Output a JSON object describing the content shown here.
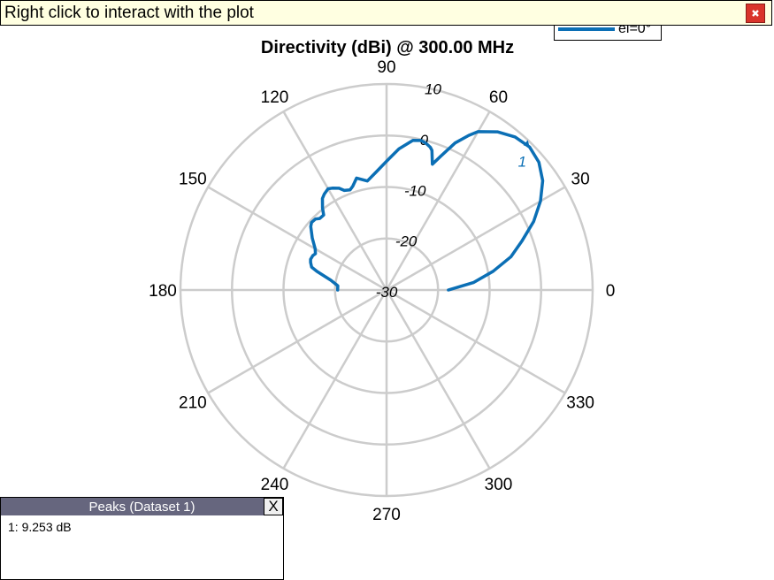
{
  "banner": {
    "text": "Right click to interact with the plot",
    "close_icon": "close-icon",
    "close_color": "#d9342b"
  },
  "legend": {
    "entries": [
      {
        "label": "el=0°",
        "color": "#0b6fb5"
      }
    ]
  },
  "peaks_panel": {
    "title": "Peaks (Dataset 1)",
    "close_label": "X",
    "items": [
      "1: 9.253 dB"
    ]
  },
  "chart_data": {
    "type": "polar",
    "title": "Directivity (dBi) @ 300.00 MHz",
    "angle_unit": "degrees",
    "angle_tick_labels": [
      "0",
      "30",
      "60",
      "90",
      "120",
      "150",
      "180",
      "210",
      "240",
      "270",
      "300",
      "330"
    ],
    "radial_range": [
      -30,
      10
    ],
    "radial_tick_labels": [
      "-30",
      "-20",
      "-10",
      "0",
      "10"
    ],
    "grid": true,
    "grid_color": "#cccccc",
    "legend_position": "top-right",
    "peak_marker": {
      "label": "1",
      "angle": 45,
      "value": 9.253
    },
    "series": [
      {
        "name": "el=0°",
        "color": "#0b6fb5",
        "angles": [
          0,
          5,
          10,
          15,
          20,
          25,
          30,
          35,
          40,
          45,
          50,
          55,
          60,
          62,
          65,
          68,
          70,
          72,
          73,
          75,
          77,
          80,
          85,
          90,
          95,
          100,
          105,
          108,
          110,
          113,
          115,
          118,
          120,
          123,
          125,
          128,
          130,
          133,
          135,
          138,
          140,
          145,
          150,
          153,
          155,
          158,
          160,
          163,
          165,
          170,
          175,
          180
        ],
        "values": [
          -18,
          -13,
          -9,
          -5,
          -2,
          1.5,
          4.5,
          7,
          8.6,
          9.253,
          8.8,
          7.5,
          5.5,
          4,
          1.5,
          -2,
          -4,
          -1.5,
          -1,
          -0.5,
          -0.2,
          -0.5,
          -2.5,
          -5,
          -7,
          -8.5,
          -7.5,
          -8.8,
          -9.3,
          -9,
          -8.2,
          -7.6,
          -7.3,
          -7.8,
          -8.3,
          -9.8,
          -11,
          -11,
          -10.5,
          -10.4,
          -10.8,
          -12.4,
          -14,
          -14.5,
          -14.2,
          -14.1,
          -14.3,
          -14.8,
          -16,
          -19,
          -20.5,
          -20.5
        ]
      }
    ]
  }
}
